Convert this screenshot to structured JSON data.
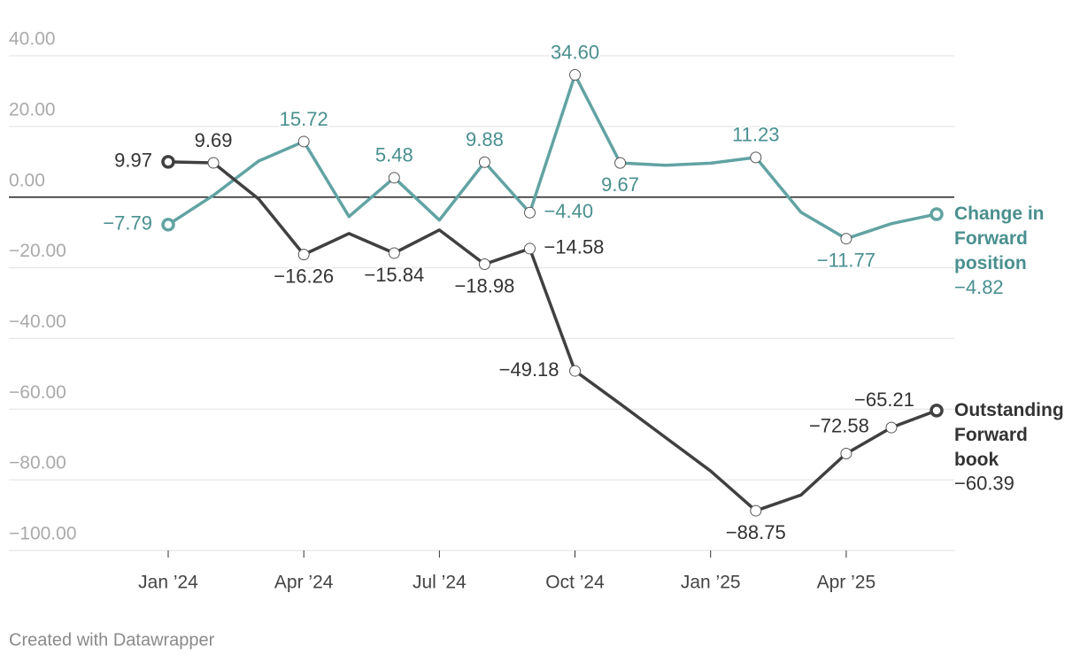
{
  "chart_data": {
    "type": "line",
    "categories": [
      "Jan ’24",
      null,
      null,
      "Apr ’24",
      null,
      null,
      "Jul ’24",
      null,
      null,
      "Oct ’24",
      null,
      null,
      "Jan ’25",
      null,
      null,
      "Apr ’25",
      null,
      null
    ],
    "ylim": [
      -100,
      40
    ],
    "yticks": [
      {
        "value": 40,
        "label": "40.00"
      },
      {
        "value": 20,
        "label": "20.00"
      },
      {
        "value": 0,
        "label": "0.00"
      },
      {
        "value": -20,
        "label": "−20.00"
      },
      {
        "value": -40,
        "label": "−40.00"
      },
      {
        "value": -60,
        "label": "−60.00"
      },
      {
        "value": -80,
        "label": "−80.00"
      },
      {
        "value": -100,
        "label": "−100.00"
      }
    ],
    "grid": true,
    "series": [
      {
        "name": "Change in Forward position",
        "color": "#62a3a3",
        "label_color": "#4a8f8f",
        "values": [
          -7.79,
          0.5,
          10.2,
          15.72,
          -5.5,
          5.48,
          -6.5,
          9.88,
          -4.4,
          34.6,
          9.67,
          9.0,
          9.6,
          11.23,
          -4.3,
          -11.77,
          -7.5,
          -4.82
        ],
        "value_labels": [
          "−7.79",
          null,
          null,
          "15.72",
          null,
          "5.48",
          null,
          "9.88",
          "−4.40",
          "34.60",
          "9.67",
          null,
          null,
          "11.23",
          null,
          "−11.77",
          null,
          "−4.82"
        ]
      },
      {
        "name": "Outstanding Forward book",
        "color": "#404040",
        "label_color": "#333333",
        "values": [
          9.97,
          9.69,
          -0.5,
          -16.26,
          -10.3,
          -15.84,
          -9.3,
          -18.98,
          -14.58,
          -49.18,
          -58.5,
          -68.0,
          -77.5,
          -88.75,
          -84.3,
          -72.58,
          -65.21,
          -60.39
        ],
        "value_labels": [
          "9.97",
          "9.69",
          null,
          "−16.26",
          null,
          "−15.84",
          null,
          "−18.98",
          "−14.58",
          "−49.18",
          null,
          null,
          null,
          "−88.75",
          null,
          "−72.58",
          "−65.21",
          "−60.39"
        ]
      }
    ],
    "footer": "Created with Datawrapper"
  }
}
